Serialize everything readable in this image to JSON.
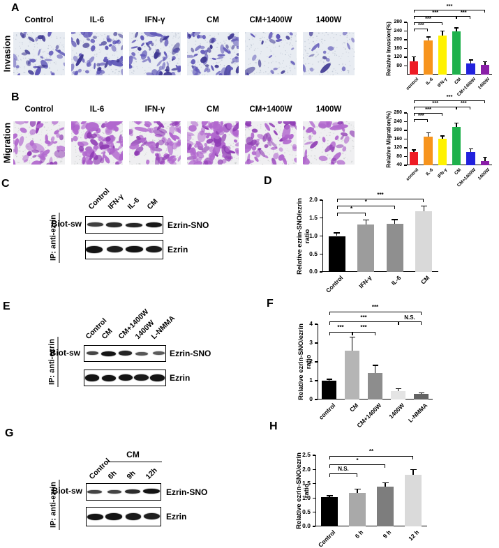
{
  "panels": {
    "a": {
      "letter": "A",
      "row_label": "Invasion",
      "conditions": [
        "Control",
        "IL-6",
        "IFN-γ",
        "CM",
        "CM+1400W",
        "1400W"
      ],
      "cell_counts": [
        34,
        58,
        54,
        64,
        18,
        15
      ],
      "stain": "#6058b8",
      "stain_dark": "#3f3892",
      "bg": "#e8ecf2",
      "speckle": "#b3bccb"
    },
    "b": {
      "letter": "B",
      "row_label": "Migration",
      "conditions": [
        "Control",
        "IL-6",
        "IFN-γ",
        "CM",
        "CM+1400W",
        "1400W"
      ],
      "cell_counts": [
        46,
        90,
        68,
        94,
        56,
        38
      ],
      "stain": "#b168ce",
      "stain_dark": "#8f3cb4",
      "bg": "#efeff1",
      "speckle": "#c3c7c5"
    },
    "c": {
      "letter": "C",
      "ip_label": "IP: anti-ezrin",
      "probe_label": "Biot-sw",
      "lanes": [
        "Control",
        "IFN-γ",
        "IL-6",
        "CM"
      ],
      "rows": [
        {
          "label": "Ezrin-SNO",
          "intensities": [
            0.62,
            0.78,
            0.84,
            0.97
          ]
        },
        {
          "label": "Ezrin",
          "intensities": [
            1.0,
            0.9,
            1.0,
            0.95
          ]
        }
      ]
    },
    "e": {
      "letter": "E",
      "ip_label": "IP: anti-ezrin",
      "probe_label": "Biot-sw",
      "lanes": [
        "Control",
        "CM",
        "CM+1400W",
        "1400W",
        "L-NMMA"
      ],
      "rows": [
        {
          "label": "Ezrin-SNO",
          "intensities": [
            0.58,
            1.0,
            0.85,
            0.42,
            0.38
          ]
        },
        {
          "label": "Ezrin",
          "intensities": [
            1.0,
            1.0,
            1.0,
            0.95,
            1.0
          ]
        }
      ]
    },
    "g": {
      "letter": "G",
      "ip_label": "IP: anti-ezrin",
      "probe_label": "Biot-sw",
      "lanes": [
        "Control",
        "6h",
        "9h",
        "12h"
      ],
      "group_label": "CM",
      "group_span": [
        1,
        3
      ],
      "rows": [
        {
          "label": "Ezrin-SNO",
          "intensities": [
            0.58,
            0.58,
            0.78,
            1.0
          ]
        },
        {
          "label": "Ezrin",
          "intensities": [
            1.0,
            1.0,
            0.95,
            0.9
          ]
        }
      ]
    }
  },
  "chart_data": [
    {
      "id": "A",
      "type": "bar",
      "ylabel": "Relative Invasion(%)",
      "categories": [
        "control",
        "IL-6",
        "IFN-γ",
        "CM",
        "CM+1400W",
        "1400W"
      ],
      "values": [
        100,
        198,
        220,
        240,
        92,
        85
      ],
      "errors": [
        22,
        15,
        20,
        15,
        15,
        14
      ],
      "colors": [
        "#ee1c25",
        "#f7941d",
        "#fff200",
        "#1fb14c",
        "#2222dd",
        "#8a1fa8"
      ],
      "ylim": [
        40,
        280
      ],
      "yticks": [
        80,
        120,
        160,
        200,
        240,
        280
      ],
      "tick_format": "int",
      "brackets": [
        {
          "from": 0,
          "to": 1,
          "label": "***",
          "level": 1
        },
        {
          "from": 0,
          "to": 2,
          "label": "***",
          "level": 2
        },
        {
          "from": 0,
          "to": 3,
          "label": "***",
          "level": 3
        },
        {
          "from": 3,
          "to": 4,
          "label": "***",
          "level": 3
        },
        {
          "from": 0,
          "to": 5,
          "label": "***",
          "level": 4
        }
      ]
    },
    {
      "id": "B",
      "type": "bar",
      "ylabel": "Relative Migration(%)",
      "categories": [
        "control",
        "IL-6",
        "IFN-γ",
        "CM",
        "CM+1400W",
        "1400W"
      ],
      "values": [
        100,
        170,
        162,
        215,
        100,
        58
      ],
      "errors": [
        10,
        18,
        12,
        18,
        16,
        18
      ],
      "colors": [
        "#ee1c25",
        "#f7941d",
        "#fff200",
        "#1fb14c",
        "#2222dd",
        "#8a1fa8"
      ],
      "ylim": [
        40,
        280
      ],
      "yticks": [
        40,
        80,
        120,
        160,
        200,
        240,
        280
      ],
      "tick_format": "int",
      "brackets": [
        {
          "from": 0,
          "to": 1,
          "label": "***",
          "level": 1
        },
        {
          "from": 0,
          "to": 2,
          "label": "***",
          "level": 2
        },
        {
          "from": 0,
          "to": 3,
          "label": "***",
          "level": 3
        },
        {
          "from": 3,
          "to": 4,
          "label": "***",
          "level": 3
        },
        {
          "from": 0,
          "to": 5,
          "label": "***",
          "level": 4
        }
      ]
    },
    {
      "id": "D",
      "type": "bar",
      "letter": "D",
      "ylabel": "Relative ezrin-SNO/ezrin\nratio",
      "categories": [
        "Control",
        "IFN-γ",
        "IL-6",
        "CM"
      ],
      "values": [
        1.0,
        1.32,
        1.34,
        1.68
      ],
      "errors": [
        0.09,
        0.13,
        0.12,
        0.15
      ],
      "colors": [
        "#000000",
        "#9c9c9c",
        "#8f8f8f",
        "#d9d9d9"
      ],
      "ylim": [
        0,
        2.0
      ],
      "yticks": [
        0,
        0.5,
        1.0,
        1.5,
        2.0
      ],
      "tick_format": "1dp",
      "brackets": [
        {
          "from": 0,
          "to": 1,
          "label": "*",
          "level": 1
        },
        {
          "from": 0,
          "to": 2,
          "label": "*",
          "level": 2
        },
        {
          "from": 0,
          "to": 3,
          "label": "***",
          "level": 3
        }
      ]
    },
    {
      "id": "F",
      "type": "bar",
      "letter": "F",
      "ylabel": "Relative ezrin-SNO/ezrin\nratio",
      "categories": [
        "control",
        "CM",
        "CM+1400W",
        "1400W",
        "L-NMMA"
      ],
      "values": [
        1.0,
        2.6,
        1.42,
        0.46,
        0.3
      ],
      "errors": [
        0.07,
        0.72,
        0.4,
        0.12,
        0.06
      ],
      "colors": [
        "#000000",
        "#b5b5b5",
        "#8d8d8d",
        "#e4e4e4",
        "#636363"
      ],
      "ylim": [
        0,
        4
      ],
      "yticks": [
        0,
        1,
        2,
        3,
        4
      ],
      "tick_format": "int",
      "brackets": [
        {
          "from": 0,
          "to": 1,
          "label": "***",
          "level": 1
        },
        {
          "from": 1,
          "to": 2,
          "label": "***",
          "level": 1
        },
        {
          "from": 0,
          "to": 3,
          "label": "***",
          "level": 2
        },
        {
          "from": 3,
          "to": 4,
          "label": "N.S.",
          "level": 2
        },
        {
          "from": 0,
          "to": 4,
          "label": "***",
          "level": 3
        }
      ]
    },
    {
      "id": "H",
      "type": "bar",
      "letter": "H",
      "ylabel": "Relative ezrin-SNO/ezrin\nratio",
      "categories": [
        "Control",
        "6 h",
        "9 h",
        "12 h"
      ],
      "values": [
        1.02,
        1.18,
        1.4,
        1.82
      ],
      "errors": [
        0.06,
        0.13,
        0.13,
        0.17
      ],
      "colors": [
        "#000000",
        "#a9a9a9",
        "#7d7d7d",
        "#dadada"
      ],
      "ylim": [
        0,
        2.5
      ],
      "yticks": [
        0,
        0.5,
        1.0,
        1.5,
        2.0,
        2.5
      ],
      "tick_format": "1dp",
      "brackets": [
        {
          "from": 0,
          "to": 1,
          "label": "N.S.",
          "level": 1
        },
        {
          "from": 0,
          "to": 2,
          "label": "*",
          "level": 2
        },
        {
          "from": 0,
          "to": 3,
          "label": "**",
          "level": 3
        }
      ]
    }
  ]
}
